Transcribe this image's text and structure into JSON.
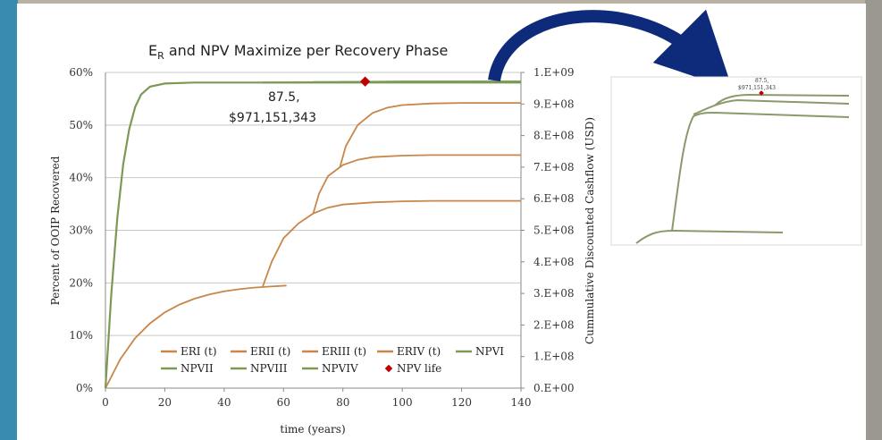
{
  "chart_data": {
    "type": "line",
    "title_main": "E",
    "title_sub": "R",
    "title_rest": " and NPV Maximize per Recovery Phase",
    "xlabel": "time (years)",
    "ylabel_left": "Percent of OOIP Recovered",
    "ylabel_right": "Cummulative Discounted Cashflow  (USD)",
    "xlim": [
      0,
      140
    ],
    "ylim_left": [
      0,
      60
    ],
    "ylim_right": [
      0,
      1000000000
    ],
    "x_ticks": [
      "0",
      "20",
      "40",
      "60",
      "80",
      "100",
      "120",
      "140"
    ],
    "y_ticks_left": [
      "0%",
      "10%",
      "20%",
      "30%",
      "40%",
      "50%",
      "60%"
    ],
    "y_ticks_right": [
      "0.E+00",
      "1.E+08",
      "2.E+08",
      "3.E+08",
      "4.E+08",
      "5.E+08",
      "6.E+08",
      "7.E+08",
      "8.E+08",
      "9.E+08",
      "1.E+09"
    ],
    "grid": "horizontal",
    "legend_position": "bottom-left",
    "colors": {
      "er": "#c8864a",
      "npv": "#7a9a55",
      "npv_life": "#c00000",
      "arrow": "#0e2a7a"
    },
    "legend": [
      {
        "label": "ERI (t)",
        "kind": "er"
      },
      {
        "label": "ERII (t)",
        "kind": "er"
      },
      {
        "label": "ERIII (t)",
        "kind": "er"
      },
      {
        "label": "ERIV (t)",
        "kind": "er"
      },
      {
        "label": "NPVI",
        "kind": "npv"
      },
      {
        "label": "NPVII",
        "kind": "npv"
      },
      {
        "label": "NPVIII",
        "kind": "npv"
      },
      {
        "label": "NPVIV",
        "kind": "npv"
      },
      {
        "label": "NPV life",
        "kind": "marker"
      }
    ],
    "series": [
      {
        "name": "ERI (t)",
        "axis": "left",
        "points": [
          [
            0,
            0
          ],
          [
            5,
            5.5
          ],
          [
            10,
            9.5
          ],
          [
            15,
            12.3
          ],
          [
            20,
            14.4
          ],
          [
            25,
            15.9
          ],
          [
            30,
            17
          ],
          [
            35,
            17.8
          ],
          [
            40,
            18.4
          ],
          [
            45,
            18.8
          ],
          [
            50,
            19.1
          ],
          [
            55,
            19.3
          ],
          [
            61,
            19.5
          ]
        ]
      },
      {
        "name": "ERII (t)",
        "axis": "left",
        "points": [
          [
            53,
            19.3
          ],
          [
            56,
            24
          ],
          [
            60,
            28.5
          ],
          [
            65,
            31.3
          ],
          [
            70,
            33.2
          ],
          [
            75,
            34.3
          ],
          [
            80,
            34.9
          ],
          [
            90,
            35.3
          ],
          [
            100,
            35.5
          ],
          [
            110,
            35.6
          ],
          [
            120,
            35.6
          ],
          [
            140,
            35.6
          ]
        ]
      },
      {
        "name": "ERIII (t)",
        "axis": "left",
        "points": [
          [
            70,
            33.2
          ],
          [
            72,
            37
          ],
          [
            75,
            40.3
          ],
          [
            80,
            42.4
          ],
          [
            85,
            43.4
          ],
          [
            90,
            43.9
          ],
          [
            100,
            44.2
          ],
          [
            110,
            44.3
          ],
          [
            140,
            44.3
          ]
        ]
      },
      {
        "name": "ERIV (t)",
        "axis": "left",
        "points": [
          [
            79,
            42
          ],
          [
            81,
            46
          ],
          [
            85,
            50
          ],
          [
            90,
            52.3
          ],
          [
            95,
            53.3
          ],
          [
            100,
            53.8
          ],
          [
            110,
            54.1
          ],
          [
            120,
            54.2
          ],
          [
            140,
            54.2
          ]
        ]
      },
      {
        "name": "NPVI",
        "axis": "right",
        "points": [
          [
            0,
            0
          ],
          [
            2,
            300000000
          ],
          [
            4,
            540000000
          ],
          [
            6,
            710000000
          ],
          [
            8,
            820000000
          ],
          [
            10,
            890000000
          ],
          [
            12,
            930000000
          ],
          [
            15,
            955000000
          ],
          [
            20,
            965000000
          ],
          [
            30,
            968000000
          ],
          [
            50,
            968000000
          ],
          [
            140,
            968000000
          ]
        ]
      },
      {
        "name": "NPVII",
        "axis": "right",
        "points": [
          [
            53,
            968000000
          ],
          [
            80,
            969000000
          ],
          [
            140,
            969500000
          ]
        ]
      },
      {
        "name": "NPVIII",
        "axis": "right",
        "points": [
          [
            70,
            969000000
          ],
          [
            100,
            970000000
          ],
          [
            140,
            970500000
          ]
        ]
      },
      {
        "name": "NPVIV",
        "axis": "right",
        "points": [
          [
            79,
            969500000
          ],
          [
            100,
            971000000
          ],
          [
            140,
            971150000
          ]
        ]
      }
    ],
    "npv_life": {
      "x": 87.5,
      "y": 971151343
    },
    "annotation": [
      "87.5,",
      "$971,151,343"
    ]
  },
  "inset": {
    "annotation": [
      "87.5,",
      "$971,151,343"
    ]
  }
}
